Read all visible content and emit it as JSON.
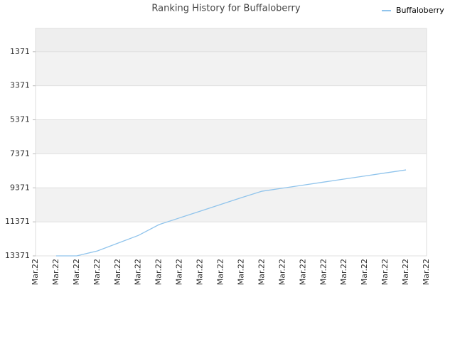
{
  "chart_data": {
    "type": "line",
    "title": "Ranking History for Buffaloberry",
    "categories": [
      "Mar.22",
      "Mar.22",
      "Mar.22",
      "Mar.22",
      "Mar.22",
      "Mar.22",
      "Mar.22",
      "Mar.22",
      "Mar.22",
      "Mar.22",
      "Mar.22",
      "Mar.22",
      "Mar.22",
      "Mar.22",
      "Mar.22",
      "Mar.22",
      "Mar.22",
      "Mar.22",
      "Mar.22",
      "Mar.22"
    ],
    "series": [
      {
        "name": "Buffaloberry",
        "color": "#90c4ec",
        "values": [
          null,
          13371,
          13371,
          13083,
          12625,
          12167,
          11533,
          11138,
          10742,
          10346,
          9950,
          9571,
          9392,
          9213,
          9033,
          8854,
          8675,
          8496,
          8317,
          null
        ]
      }
    ],
    "ylim": [
      13371,
      0
    ],
    "yticks": [
      1371,
      3371,
      5371,
      7371,
      9371,
      11371,
      13371
    ],
    "legend": "top-right"
  }
}
